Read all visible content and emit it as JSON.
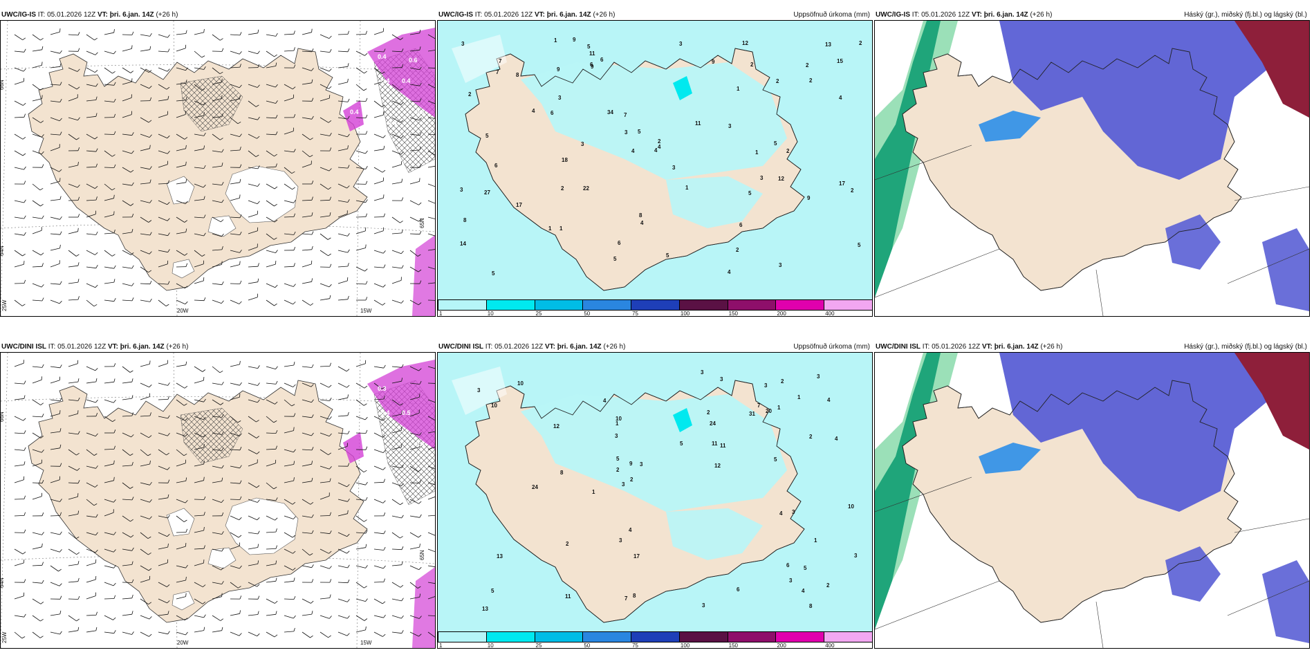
{
  "panels": [
    {
      "id": "p1",
      "model": "UWC/IG-IS",
      "it_label": "IT:",
      "it_value": "05.01.2026 12Z",
      "vt_label": "VT:",
      "vt_value": "þri. 6.jan. 14Z",
      "lead": "(+26 h)",
      "right_title": "",
      "type": "wind",
      "axis_labels": [
        "66N",
        "64N",
        "25W",
        "20W",
        "15W",
        "65N"
      ],
      "contour_labels": [
        "0.4",
        "0.4",
        "0.4",
        "0.8",
        "0.4",
        "0.5",
        "0.6"
      ]
    },
    {
      "id": "p2",
      "model": "UWC/IG-IS",
      "it_label": "IT:",
      "it_value": "05.01.2026 12Z",
      "vt_label": "VT:",
      "vt_value": "þri. 6.jan. 14Z",
      "lead": "(+26 h)",
      "right_title": "Uppsöfnuð úrkoma (mm)",
      "type": "precip",
      "numbers": [
        "4",
        "3",
        "7",
        "3",
        "4",
        "2",
        "14",
        "5",
        "3",
        "13",
        "22",
        "27",
        "34",
        "17",
        "17",
        "12",
        "9",
        "11",
        "18",
        "3",
        "15",
        "6",
        "8",
        "9",
        "6",
        "7",
        "2",
        "5",
        "3",
        "1",
        "1",
        "2",
        "4",
        "2",
        "2",
        "1",
        "1",
        "2",
        "4",
        "5",
        "9",
        "8",
        "5",
        "4",
        "3",
        "5",
        "6",
        "5",
        "3",
        "6",
        "5",
        "2",
        "3",
        "2",
        "12",
        "11",
        "9",
        "5",
        "6",
        "1",
        "2",
        "3",
        "4",
        "5",
        "6",
        "7",
        "8",
        "9",
        "3",
        "4",
        "2",
        "2",
        "1"
      ]
    },
    {
      "id": "p3",
      "model": "UWC/IG-IS",
      "it_label": "IT:",
      "it_value": "05.01.2026 12Z",
      "vt_label": "VT:",
      "vt_value": "þri. 6.jan. 14Z",
      "lead": "(+26 h)",
      "right_title": "Háský (gr.), miðský (fj.bl.) og lágský (bl.)",
      "type": "cloud"
    },
    {
      "id": "p4",
      "model": "UWC/DINI ISL",
      "it_label": "IT:",
      "it_value": "05.01.2026 12Z",
      "vt_label": "VT:",
      "vt_value": "þri. 6.jan. 14Z",
      "lead": "(+26 h)",
      "right_title": "",
      "type": "wind",
      "axis_labels": [
        "66N",
        "64N",
        "25W",
        "20W",
        "15W",
        "65N"
      ],
      "contour_labels": [
        "0.3",
        "0.4",
        "0.5",
        "0.4"
      ]
    },
    {
      "id": "p5",
      "model": "UWC/DINI ISL",
      "it_label": "IT:",
      "it_value": "05.01.2026 12Z",
      "vt_label": "VT:",
      "vt_value": "þri. 6.jan. 14Z",
      "lead": "(+26 h)",
      "right_title": "Uppsöfnuð úrkoma (mm)",
      "type": "precip",
      "numbers": [
        "3",
        "3",
        "4",
        "3",
        "5",
        "24",
        "31",
        "13",
        "10",
        "17",
        "20",
        "12",
        "4",
        "2",
        "11",
        "3",
        "7",
        "10",
        "24",
        "13",
        "8",
        "7",
        "6",
        "5",
        "4",
        "3",
        "2",
        "1",
        "2",
        "5",
        "3",
        "2",
        "1",
        "1",
        "2",
        "3",
        "4",
        "5",
        "12",
        "11",
        "10",
        "10",
        "11",
        "8",
        "3",
        "4",
        "8",
        "3",
        "3",
        "3",
        "6",
        "9",
        "5",
        "4",
        "1",
        "2",
        "1",
        "3",
        "2",
        "3"
      ]
    },
    {
      "id": "p6",
      "model": "UWC/DINI ISL",
      "it_label": "IT:",
      "it_value": "05.01.2026 12Z",
      "vt_label": "VT:",
      "vt_value": "þri. 6.jan. 14Z",
      "lead": "(+26 h)",
      "right_title": "Háský (gr.), miðský (fj.bl.) og lágský (bl.)",
      "type": "cloud"
    }
  ],
  "colorbar": {
    "ticks": [
      "1",
      "10",
      "25",
      "50",
      "75",
      "100",
      "150",
      "200",
      "400"
    ],
    "colors": [
      "#b6f5f8",
      "#00e9ef",
      "#00bde6",
      "#2a86e0",
      "#1e3fb8",
      "#5a1144",
      "#8e0f6a",
      "#e000ad",
      "#f2a7f1"
    ]
  },
  "colors": {
    "land": "#f3e3d0",
    "sea_precip": "#b8f5f7",
    "cloud_low": "#5a5fd5",
    "cloud_mid": "#2c8ee8",
    "cloud_high": "#1fa57a",
    "cloud_high_light": "#9be0b8",
    "cloud_dark": "#8e1f3a",
    "magenta": "#d340d6"
  }
}
